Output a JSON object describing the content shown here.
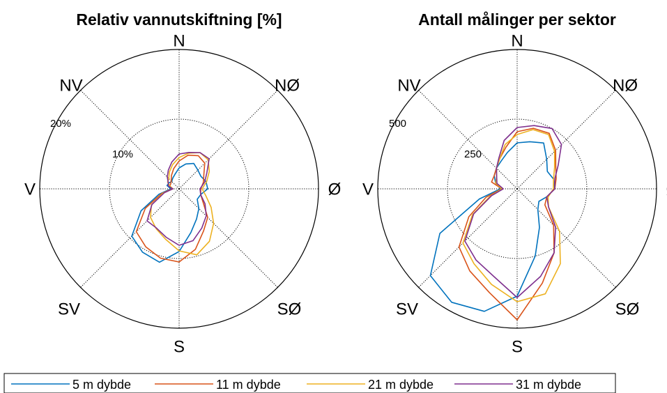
{
  "chart_data": [
    {
      "type": "polar-line",
      "title": "Relativ vannutskiftning [%]",
      "direction_labels": [
        "N",
        "NØ",
        "Ø",
        "SØ",
        "S",
        "SV",
        "V",
        "NV"
      ],
      "radial_ticks": [
        10,
        20
      ],
      "radial_tick_labels": [
        "10%",
        "20%"
      ],
      "rlim": [
        0,
        20
      ],
      "angles_deg": [
        0,
        15,
        30,
        45,
        60,
        75,
        90,
        105,
        120,
        135,
        150,
        165,
        180,
        195,
        210,
        225,
        240,
        255,
        270,
        285,
        300,
        315,
        330,
        345
      ],
      "series": [
        {
          "name": "5 m dybde",
          "color": "#0072BD",
          "values": [
            3.0,
            3.7,
            4.2,
            3.8,
            3.6,
            4.0,
            4.1,
            3.2,
            3.0,
            4.0,
            5.0,
            6.5,
            9.0,
            10.9,
            10.5,
            9.6,
            6.3,
            3.0,
            1.2,
            1.8,
            1.7,
            1.5,
            1.8,
            2.2
          ]
        },
        {
          "name": "11 m dybde",
          "color": "#D95319",
          "values": [
            4.0,
            5.0,
            5.5,
            5.2,
            4.1,
            3.6,
            3.1,
            3.2,
            4.0,
            5.8,
            7.0,
            9.0,
            10.5,
            10.3,
            9.6,
            8.7,
            5.6,
            2.6,
            1.0,
            1.4,
            1.4,
            1.6,
            2.2,
            3.0
          ]
        },
        {
          "name": "21 m dybde",
          "color": "#EDB120",
          "values": [
            4.5,
            5.3,
            6.0,
            5.9,
            5.0,
            4.1,
            3.3,
            4.0,
            5.3,
            7.0,
            8.7,
            9.8,
            8.9,
            7.5,
            6.6,
            5.8,
            4.6,
            2.4,
            0.9,
            1.3,
            1.9,
            2.1,
            2.8,
            3.6
          ]
        },
        {
          "name": "31 m dybde",
          "color": "#7E2F8E",
          "values": [
            5.0,
            5.4,
            6.0,
            6.1,
            4.6,
            3.8,
            3.0,
            3.2,
            4.3,
            5.5,
            6.5,
            7.7,
            8.1,
            7.2,
            6.5,
            6.5,
            4.5,
            2.2,
            0.9,
            1.6,
            1.8,
            2.4,
            3.1,
            4.0
          ]
        }
      ]
    },
    {
      "type": "polar-line",
      "title": "Antall målinger per sektor",
      "direction_labels": [
        "N",
        "NØ",
        "Ø",
        "SØ",
        "S",
        "SV",
        "V",
        "NV"
      ],
      "radial_ticks": [
        250,
        500
      ],
      "radial_tick_labels": [
        "250",
        "500"
      ],
      "rlim": [
        0,
        500
      ],
      "angles_deg": [
        0,
        15,
        30,
        45,
        60,
        75,
        90,
        105,
        120,
        135,
        150,
        165,
        180,
        195,
        210,
        225,
        240,
        255,
        270,
        285,
        300,
        315,
        330,
        345
      ],
      "series": [
        {
          "name": "5 m dybde",
          "color": "#0072BD",
          "values": [
            165,
            175,
            190,
            150,
            125,
            135,
            135,
            110,
            90,
            105,
            160,
            250,
            385,
            455,
            470,
            440,
            320,
            140,
            60,
            80,
            95,
            105,
            115,
            135
          ]
        },
        {
          "name": "11 m dybde",
          "color": "#D95319",
          "values": [
            205,
            225,
            230,
            195,
            160,
            145,
            135,
            110,
            115,
            185,
            265,
            350,
            470,
            385,
            340,
            295,
            200,
            115,
            55,
            95,
            95,
            105,
            125,
            155
          ]
        },
        {
          "name": "21 m dybde",
          "color": "#EDB120",
          "values": [
            195,
            220,
            225,
            190,
            155,
            135,
            130,
            115,
            130,
            215,
            310,
            390,
            405,
            355,
            310,
            275,
            185,
            100,
            55,
            80,
            85,
            105,
            125,
            165
          ]
        },
        {
          "name": "31 m dybde",
          "color": "#7E2F8E",
          "values": [
            220,
            235,
            250,
            225,
            170,
            140,
            135,
            110,
            130,
            195,
            265,
            325,
            390,
            325,
            295,
            265,
            180,
            95,
            50,
            75,
            85,
            105,
            130,
            180
          ]
        }
      ]
    }
  ],
  "legend": {
    "items": [
      {
        "label": "5 m dybde",
        "color": "#0072BD"
      },
      {
        "label": "11 m dybde",
        "color": "#D95319"
      },
      {
        "label": "21 m dybde",
        "color": "#EDB120"
      },
      {
        "label": "31 m dybde",
        "color": "#7E2F8E"
      }
    ]
  }
}
